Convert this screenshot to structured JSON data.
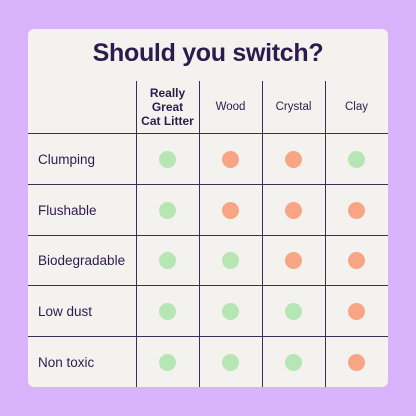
{
  "title": "Should you switch?",
  "columns": [
    {
      "label": "Really\nGreat\nCat Litter",
      "bold": true
    },
    {
      "label": "Wood",
      "bold": false
    },
    {
      "label": "Crystal",
      "bold": false
    },
    {
      "label": "Clay",
      "bold": false
    }
  ],
  "colors": {
    "yes": "#b5e6b3",
    "no": "#f7a584"
  },
  "rows": [
    {
      "label": "Clumping",
      "values": [
        "yes",
        "no",
        "no",
        "yes"
      ]
    },
    {
      "label": "Flushable",
      "values": [
        "yes",
        "no",
        "no",
        "no"
      ]
    },
    {
      "label": "Biodegradable",
      "values": [
        "yes",
        "yes",
        "no",
        "no"
      ]
    },
    {
      "label": "Low dust",
      "values": [
        "yes",
        "yes",
        "yes",
        "no"
      ]
    },
    {
      "label": "Non toxic",
      "values": [
        "yes",
        "yes",
        "yes",
        "no"
      ]
    }
  ]
}
